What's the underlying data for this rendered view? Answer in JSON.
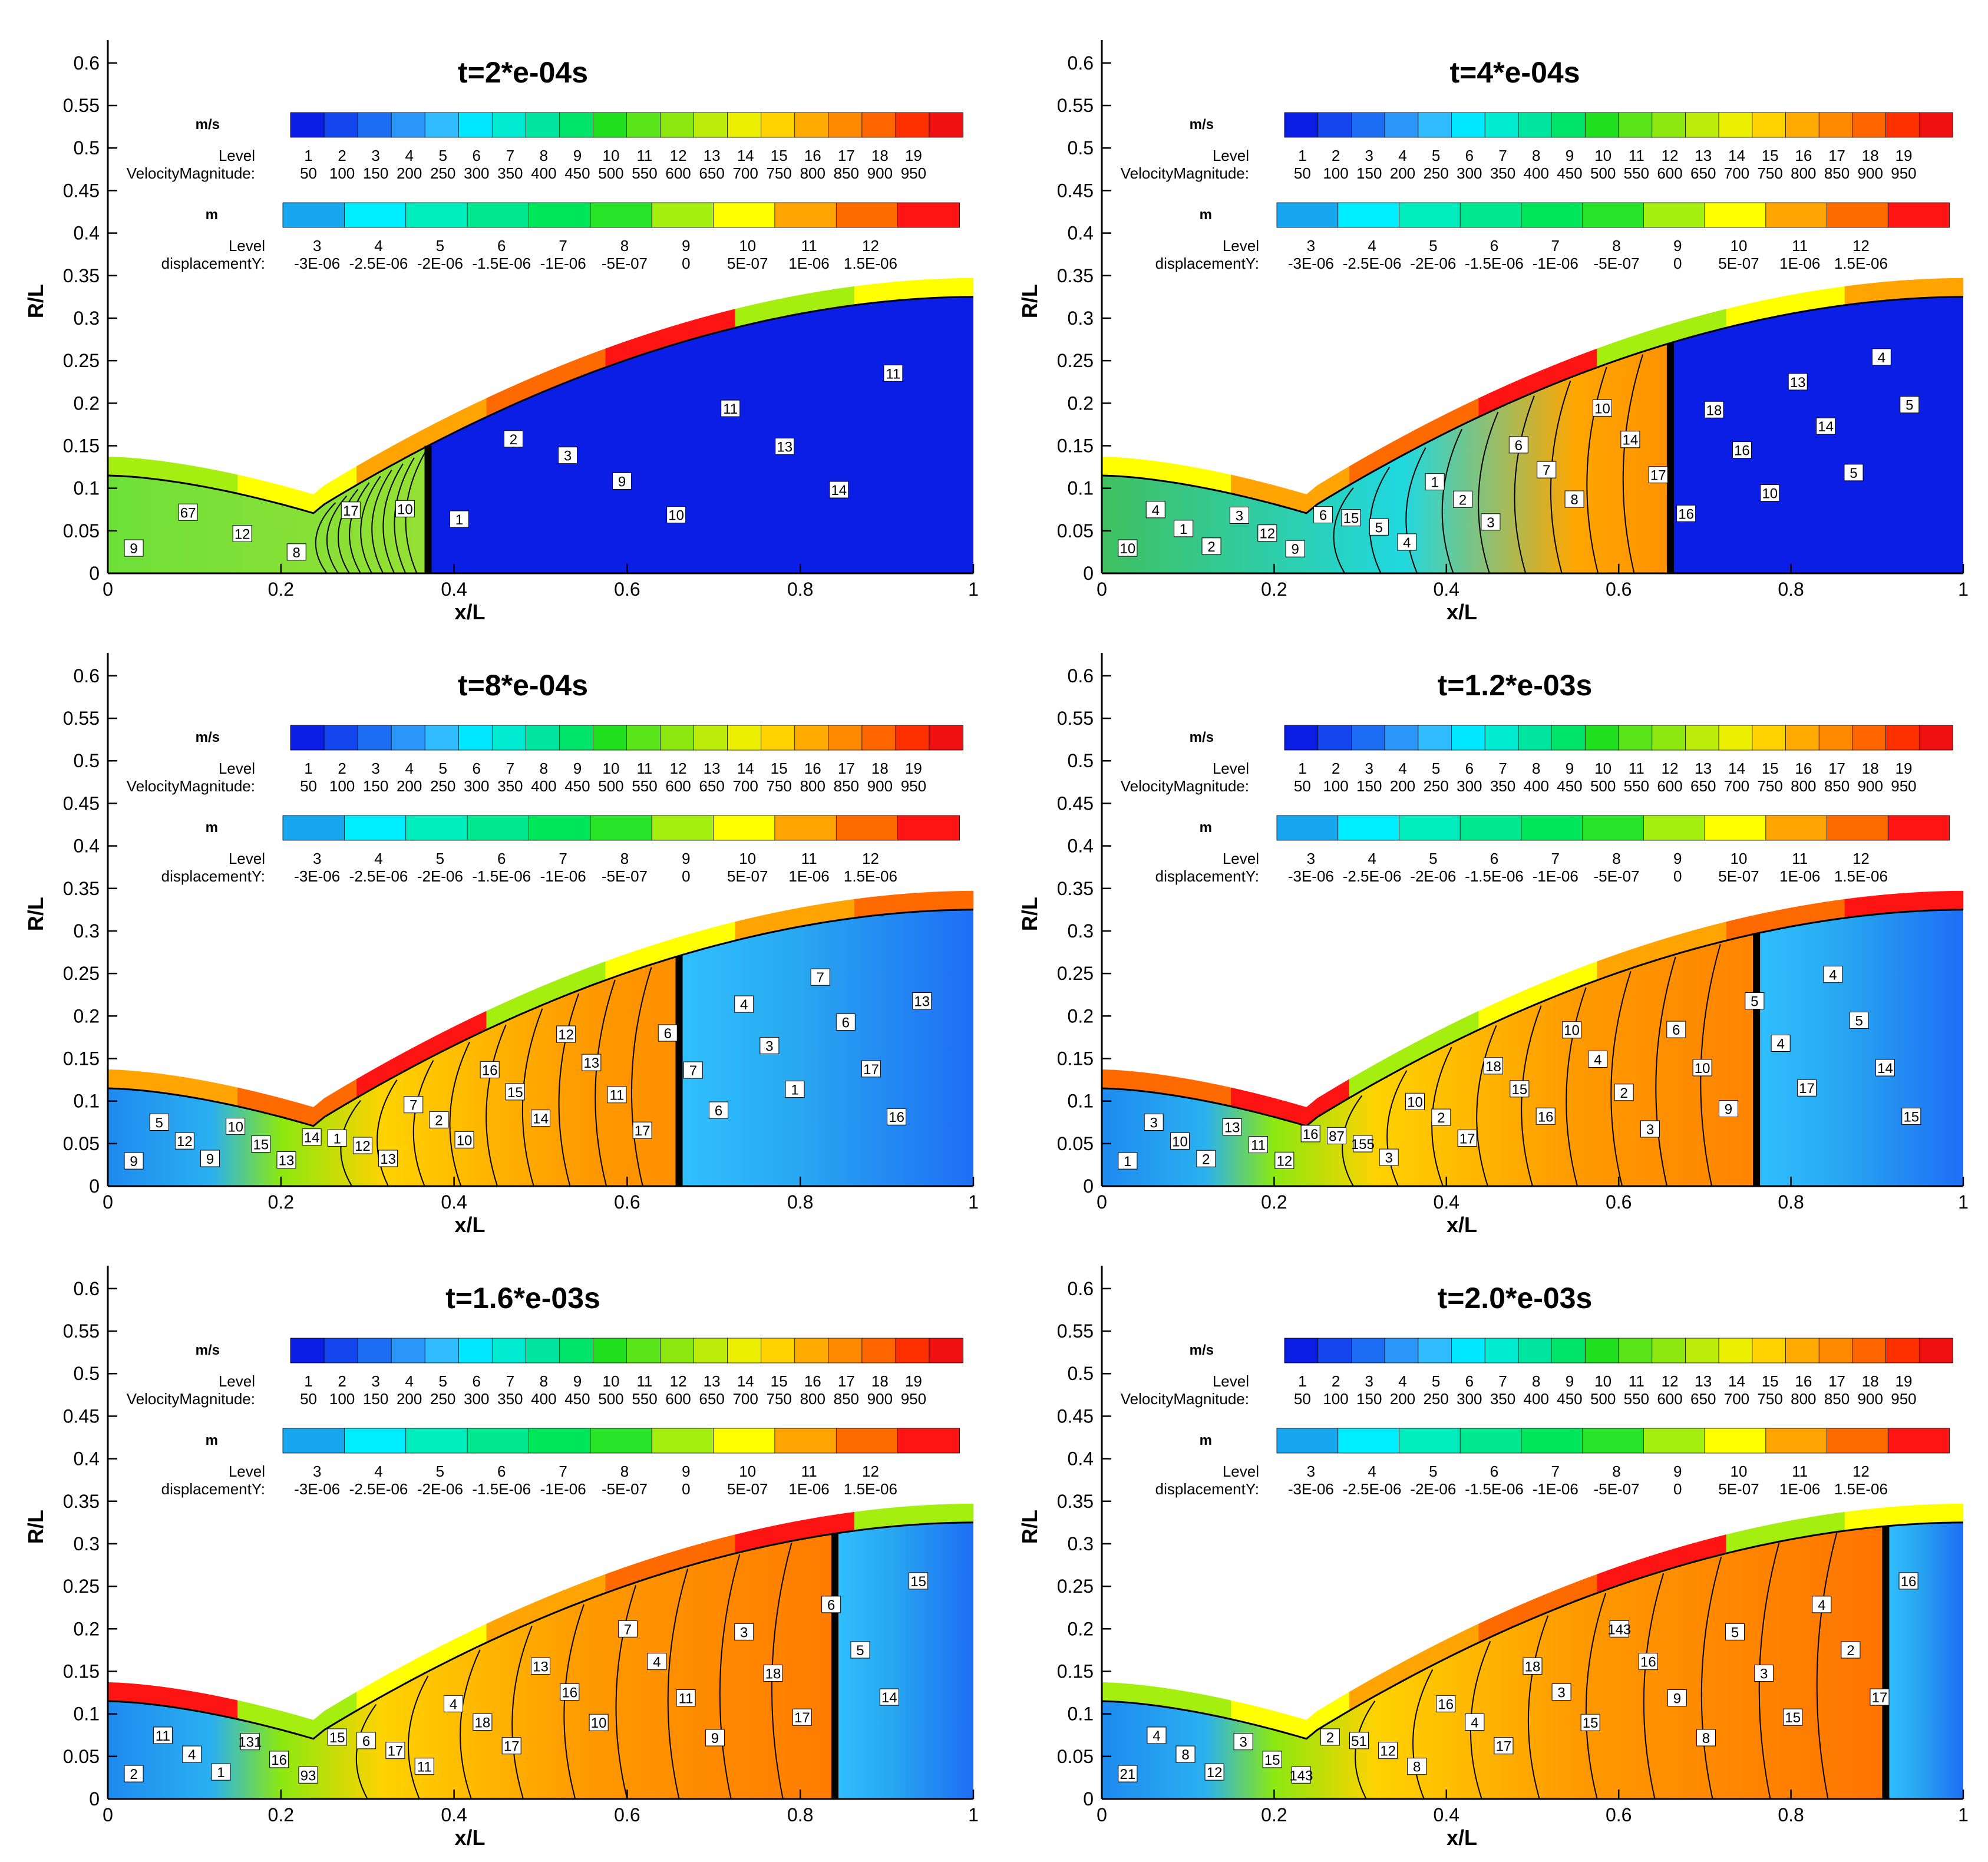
{
  "figure": {
    "panel_titles": [
      "t=2*e-04s",
      "t=4*e-04s",
      "t=8*e-04s",
      "t=1.2*e-03s",
      "t=1.6*e-03s",
      "t=2.0*e-03s"
    ]
  },
  "chart_data": {
    "type": "heatmap",
    "xlabel": "x/L",
    "ylabel": "R/L",
    "xlim": [
      0,
      1
    ],
    "ylim": [
      0,
      0.62
    ],
    "x_ticks": [
      "0",
      "0.2",
      "0.4",
      "0.6",
      "0.8",
      "1"
    ],
    "y_ticks": [
      "0",
      "0.05",
      "0.1",
      "0.15",
      "0.2",
      "0.25",
      "0.3",
      "0.35",
      "0.4",
      "0.45",
      "0.5",
      "0.55",
      "0.6"
    ],
    "velocity_legend": {
      "unit": "m/s",
      "level_label": "Level",
      "variable_label": "VelocityMagnitude:",
      "levels": [
        "1",
        "2",
        "3",
        "4",
        "5",
        "6",
        "7",
        "8",
        "9",
        "10",
        "11",
        "12",
        "13",
        "14",
        "15",
        "16",
        "17",
        "18",
        "19"
      ],
      "values": [
        "50",
        "100",
        "150",
        "200",
        "250",
        "300",
        "350",
        "400",
        "450",
        "500",
        "550",
        "600",
        "650",
        "700",
        "750",
        "800",
        "850",
        "900",
        "950"
      ],
      "colors": [
        "#0a1ee6",
        "#1446f0",
        "#1e6ef5",
        "#2a96fa",
        "#30bcff",
        "#00e8ff",
        "#00ecd2",
        "#00e6a0",
        "#00e46a",
        "#20e020",
        "#58e418",
        "#8ce810",
        "#bcec0a",
        "#ecf000",
        "#ffd200",
        "#ffaa00",
        "#ff8a00",
        "#ff6600",
        "#ff3000",
        "#ee1010"
      ]
    },
    "displacement_legend": {
      "unit": "m",
      "level_label": "Level",
      "variable_label": "displacementY:",
      "levels": [
        "3",
        "4",
        "5",
        "6",
        "7",
        "8",
        "9",
        "10",
        "11",
        "12"
      ],
      "values": [
        "-3E-06",
        "-2.5E-06",
        "-2E-06",
        "-1.5E-06",
        "-1E-06",
        "-5E-07",
        "0",
        "5E-07",
        "1E-06",
        "1.5E-06"
      ],
      "colors": [
        "#19a6f0",
        "#00ecff",
        "#00eebe",
        "#00e890",
        "#00e65a",
        "#28e428",
        "#a4ee10",
        "#ffff00",
        "#ffa400",
        "#ff6a00",
        "#ff1414"
      ]
    },
    "panels": [
      {
        "title": "t=2*e-04s",
        "shock_x": 0.37,
        "flow": "early",
        "contour_labels": [
          "9",
          "67",
          "12",
          "8",
          "17",
          "10",
          "1",
          "2",
          "3",
          "9",
          "10",
          "11",
          "13",
          "14",
          "11"
        ]
      },
      {
        "title": "t=4*e-04s",
        "shock_x": 0.66,
        "flow": "mid",
        "contour_labels": [
          "10",
          "4",
          "1",
          "2",
          "3",
          "12",
          "9",
          "6",
          "15",
          "5",
          "4",
          "1",
          "2",
          "3",
          "6",
          "7",
          "8",
          "10",
          "14",
          "17",
          "16",
          "18",
          "16",
          "10",
          "13",
          "14",
          "5",
          "4",
          "5"
        ]
      },
      {
        "title": "t=8*e-04s",
        "shock_x": 0.66,
        "flow": "late",
        "contour_labels": [
          "9",
          "5",
          "12",
          "9",
          "10",
          "15",
          "13",
          "14",
          "1",
          "12",
          "13",
          "7",
          "2",
          "10",
          "16",
          "15",
          "14",
          "12",
          "13",
          "11",
          "17",
          "6",
          "7",
          "6",
          "4",
          "3",
          "1",
          "7",
          "6",
          "17",
          "16",
          "13"
        ]
      },
      {
        "title": "t=1.2*e-03s",
        "shock_x": 0.76,
        "flow": "late",
        "contour_labels": [
          "1",
          "3",
          "10",
          "2",
          "13",
          "11",
          "12",
          "16",
          "87",
          "155",
          "3",
          "10",
          "2",
          "17",
          "18",
          "15",
          "16",
          "10",
          "4",
          "2",
          "3",
          "6",
          "10",
          "9",
          "5",
          "4",
          "17",
          "4",
          "5",
          "14",
          "15"
        ]
      },
      {
        "title": "t=1.6*e-03s",
        "shock_x": 0.84,
        "flow": "late",
        "contour_labels": [
          "2",
          "11",
          "4",
          "1",
          "131",
          "16",
          "93",
          "15",
          "6",
          "17",
          "11",
          "4",
          "18",
          "17",
          "13",
          "16",
          "10",
          "7",
          "4",
          "11",
          "9",
          "3",
          "18",
          "17",
          "6",
          "5",
          "14",
          "15"
        ]
      },
      {
        "title": "t=2.0*e-03s",
        "shock_x": 0.91,
        "flow": "late",
        "contour_labels": [
          "21",
          "4",
          "8",
          "12",
          "3",
          "15",
          "143",
          "2",
          "51",
          "12",
          "8",
          "16",
          "4",
          "17",
          "18",
          "3",
          "15",
          "143",
          "16",
          "9",
          "8",
          "5",
          "3",
          "15",
          "4",
          "2",
          "17",
          "16"
        ]
      }
    ]
  }
}
